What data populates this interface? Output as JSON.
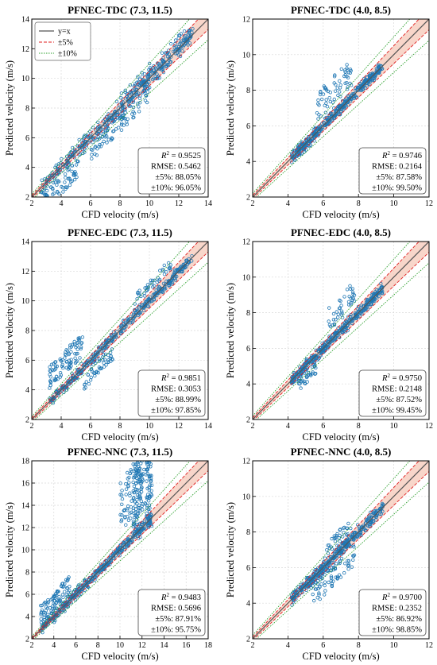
{
  "chart_data": [
    {
      "type": "scatter",
      "title": "PFNEC-TDC (7.3, 11.5)",
      "xlabel": "CFD velocity (m/s)",
      "ylabel": "Predicted velocity (m/s)",
      "xlim": [
        2,
        14
      ],
      "ylim": [
        2,
        14
      ],
      "xticks": [
        "2",
        "4",
        "6",
        "8",
        "10",
        "12",
        "14"
      ],
      "yticks": [
        "2",
        "4",
        "6",
        "8",
        "10",
        "12",
        "14"
      ],
      "grid": true,
      "legend": {
        "placement": "top-left",
        "entries": [
          "y=x",
          "±5%",
          "±10%"
        ]
      },
      "stats": {
        "r2_label": "R",
        "r2_value": " = 0.9525",
        "rmse": "RMSE: 0.5462",
        "pct5": "±5%: 88.05%",
        "pct10": "±10%: 96.05%"
      },
      "x_range_data": [
        2.6,
        13.0
      ],
      "spread": 0.55,
      "outliers": [
        {
          "x1": 2.6,
          "x2": 5.2,
          "ylo": -1.8,
          "yhi": -0.6,
          "n": 70
        },
        {
          "x1": 6.0,
          "x2": 10.0,
          "ylo": -1.6,
          "yhi": -0.3,
          "n": 90
        },
        {
          "x1": 8.0,
          "x2": 12.5,
          "ylo": 0.2,
          "yhi": 1.0,
          "n": 40
        }
      ]
    },
    {
      "type": "scatter",
      "title": "PFNEC-TDC (4.0, 8.5)",
      "xlabel": "CFD velocity (m/s)",
      "ylabel": "Predicted velocity (m/s)",
      "xlim": [
        2,
        12
      ],
      "ylim": [
        2,
        12
      ],
      "xticks": [
        "2",
        "4",
        "6",
        "8",
        "10",
        "12"
      ],
      "yticks": [
        "2",
        "4",
        "6",
        "8",
        "10",
        "12"
      ],
      "grid": true,
      "stats": {
        "r2_label": "R",
        "r2_value": " = 0.9746",
        "rmse": "RMSE: 0.2164",
        "pct5": "±5%: 87.58%",
        "pct10": "±10%: 99.50%"
      },
      "x_range_data": [
        4.2,
        9.4
      ],
      "spread": 0.3,
      "outliers": [
        {
          "x1": 5.6,
          "x2": 7.6,
          "ylo": 0.6,
          "yhi": 2.2,
          "n": 60
        },
        {
          "x1": 4.3,
          "x2": 5.5,
          "ylo": -0.4,
          "yhi": -0.1,
          "n": 20
        }
      ]
    },
    {
      "type": "scatter",
      "title": "PFNEC-EDC (7.3, 11.5)",
      "xlabel": "CFD velocity (m/s)",
      "ylabel": "Predicted velocity (m/s)",
      "xlim": [
        2,
        14
      ],
      "ylim": [
        2,
        14
      ],
      "xticks": [
        "2",
        "4",
        "6",
        "8",
        "10",
        "12",
        "14"
      ],
      "yticks": [
        "2",
        "4",
        "6",
        "8",
        "10",
        "12",
        "14"
      ],
      "grid": true,
      "stats": {
        "r2_label": "R",
        "r2_value": " = 0.9851",
        "rmse": "RMSE: 0.3053",
        "pct5": "±5%: 88.99%",
        "pct10": "±10%: 97.85%"
      },
      "x_range_data": [
        3.2,
        12.9
      ],
      "spread": 0.35,
      "outliers": [
        {
          "x1": 3.2,
          "x2": 5.5,
          "ylo": 0.8,
          "yhi": 2.4,
          "n": 90
        },
        {
          "x1": 5.5,
          "x2": 7.5,
          "ylo": -1.5,
          "yhi": -0.5,
          "n": 50
        },
        {
          "x1": 9.0,
          "x2": 11.5,
          "ylo": 0.6,
          "yhi": 1.4,
          "n": 40
        }
      ]
    },
    {
      "type": "scatter",
      "title": "PFNEC-EDC (4.0, 8.5)",
      "xlabel": "CFD velocity (m/s)",
      "ylabel": "Predicted velocity (m/s)",
      "xlim": [
        2,
        12
      ],
      "ylim": [
        2,
        12
      ],
      "xticks": [
        "2",
        "4",
        "6",
        "8",
        "10",
        "12"
      ],
      "yticks": [
        "2",
        "4",
        "6",
        "8",
        "10",
        "12"
      ],
      "grid": true,
      "stats": {
        "r2_label": "R",
        "r2_value": " = 0.9750",
        "rmse": "RMSE: 0.2148",
        "pct5": "±5%: 87.52%",
        "pct10": "±10%: 99.45%"
      },
      "x_range_data": [
        4.2,
        9.4
      ],
      "spread": 0.3,
      "outliers": [
        {
          "x1": 4.6,
          "x2": 5.6,
          "ylo": -1.0,
          "yhi": -0.3,
          "n": 30
        },
        {
          "x1": 6.2,
          "x2": 7.8,
          "ylo": 0.6,
          "yhi": 2.0,
          "n": 40
        }
      ]
    },
    {
      "type": "scatter",
      "title": "PFNEC-NNC (7.3, 11.5)",
      "xlabel": "CFD velocity (m/s)",
      "ylabel": "Predicted velocity (m/s)",
      "xlim": [
        2,
        18
      ],
      "ylim": [
        2,
        18
      ],
      "xticks": [
        "2",
        "4",
        "6",
        "8",
        "10",
        "12",
        "14",
        "16",
        "18"
      ],
      "yticks": [
        "2",
        "4",
        "6",
        "8",
        "10",
        "12",
        "14",
        "16",
        "18"
      ],
      "grid": true,
      "stats": {
        "r2_label": "R",
        "r2_value": " = 0.9483",
        "rmse": "RMSE: 0.5696",
        "pct5": "±5%: 87.91%",
        "pct10": "±10%: 95.75%"
      },
      "x_range_data": [
        2.8,
        12.8
      ],
      "spread": 0.45,
      "outliers": [
        {
          "x1": 2.8,
          "x2": 5.5,
          "ylo": 0.5,
          "yhi": 2.2,
          "n": 80
        },
        {
          "x1": 10.0,
          "x2": 12.5,
          "ylo": 1.5,
          "yhi": 6.5,
          "n": 90
        }
      ],
      "spikes": [
        {
          "x1": 11.2,
          "x2": 12.0,
          "y1": 11.0,
          "y2": 18.0,
          "n": 80
        },
        {
          "x1": 12.4,
          "x2": 12.9,
          "y1": 12.0,
          "y2": 18.0,
          "n": 60
        }
      ]
    },
    {
      "type": "scatter",
      "title": "PFNEC-NNC (4.0, 8.5)",
      "xlabel": "CFD velocity (m/s)",
      "ylabel": "Predicted velocity (m/s)",
      "xlim": [
        2,
        12
      ],
      "ylim": [
        2,
        12
      ],
      "xticks": [
        "2",
        "4",
        "6",
        "8",
        "10",
        "12"
      ],
      "yticks": [
        "2",
        "4",
        "6",
        "8",
        "10",
        "12"
      ],
      "grid": true,
      "stats": {
        "r2_label": "R",
        "r2_value": " = 0.9700",
        "rmse": "RMSE: 0.2352",
        "pct5": "±5%: 86.92%",
        "pct10": "±10%: 98.85%"
      },
      "x_range_data": [
        4.2,
        9.4
      ],
      "spread": 0.35,
      "outliers": [
        {
          "x1": 5.2,
          "x2": 7.8,
          "ylo": -1.6,
          "yhi": -0.4,
          "n": 70
        },
        {
          "x1": 6.2,
          "x2": 7.6,
          "ylo": 0.5,
          "yhi": 1.2,
          "n": 30
        }
      ]
    }
  ],
  "colors": {
    "points": "#1f77b4",
    "identity": "#555555",
    "band5_line": "#e02020",
    "band10_line": "#2ca02c",
    "band_fill": "#f5c8b8",
    "grid": "#d9d9d9"
  }
}
